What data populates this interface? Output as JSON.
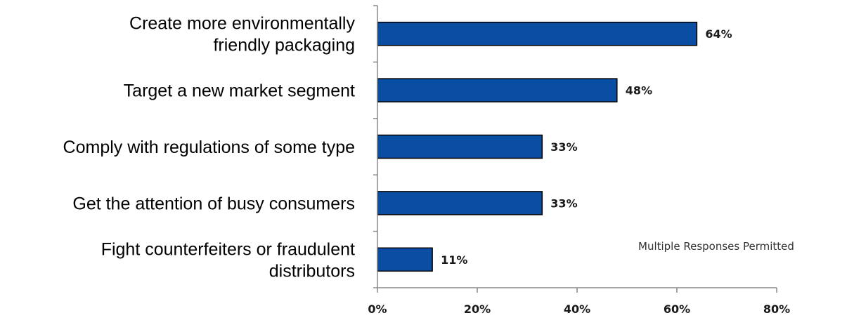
{
  "note": "Multiple Responses Permitted",
  "colors": {
    "bar_fill": "#0A4EA3",
    "bar_stroke": "#000000",
    "axis": "#888888"
  },
  "chart_data": {
    "type": "bar",
    "orientation": "horizontal",
    "categories": [
      [
        "Create more environmentally",
        "friendly packaging"
      ],
      [
        "Target a new market segment"
      ],
      [
        "Comply with regulations of some type"
      ],
      [
        "Get the attention of busy consumers"
      ],
      [
        "Fight counterfeiters or fraudulent",
        "distributors"
      ]
    ],
    "values": [
      64,
      48,
      33,
      33,
      11
    ],
    "value_labels": [
      "64%",
      "48%",
      "33%",
      "33%",
      "11%"
    ],
    "xlim": [
      0,
      80
    ],
    "xticks": [
      0,
      20,
      40,
      60,
      80
    ],
    "xtick_labels": [
      "0%",
      "20%",
      "40%",
      "60%",
      "80%"
    ],
    "grid": false,
    "legend": "none"
  }
}
